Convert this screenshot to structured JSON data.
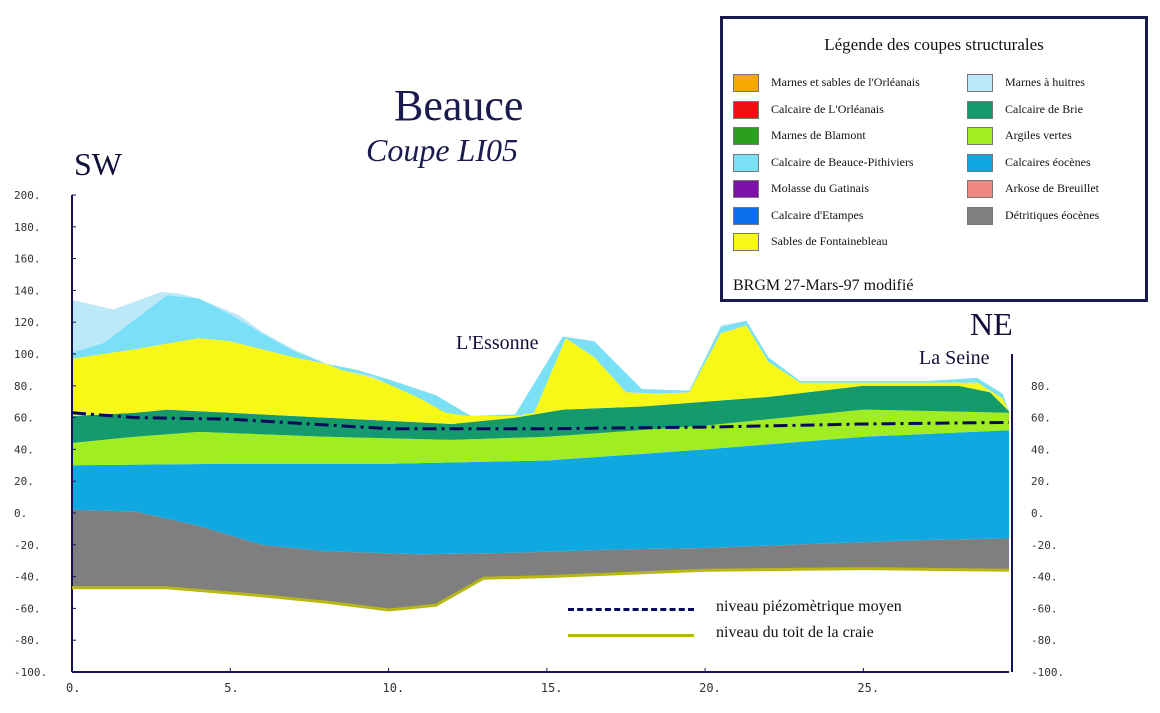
{
  "title": "Beauce",
  "subtitle": "Coupe LI05",
  "labels": {
    "sw": "SW",
    "ne": "NE",
    "essonne": "L'Essonne",
    "seine": "La Seine"
  },
  "chart_data": {
    "type": "area",
    "xlabel": "",
    "ylabel": "",
    "x_range": [
      0,
      29.6
    ],
    "y_range": [
      -100,
      200
    ],
    "x_ticks": [
      "0.",
      "5.",
      "10.",
      "15.",
      "20.",
      "25."
    ],
    "y_ticks_left": [
      "200.",
      "180.",
      "160.",
      "140.",
      "120.",
      "100.",
      "80.",
      "60.",
      "40.",
      "20.",
      "0.",
      "-20.",
      "-40.",
      "-60.",
      "-80.",
      "-100."
    ],
    "y_ticks_right": [
      "80.",
      "60.",
      "40.",
      "20.",
      "0.",
      "-20.",
      "-40.",
      "-60.",
      "-80.",
      "-100."
    ],
    "layers_bottom_to_top": [
      {
        "name": "Détritiques éocènes",
        "color": "#7f7f7f"
      },
      {
        "name": "Calcaires éocènes",
        "color": "#10a8e0"
      },
      {
        "name": "Argiles vertes",
        "color": "#a0ee22"
      },
      {
        "name": "Calcaire de Brie",
        "color": "#149a6c"
      },
      {
        "name": "Sables de Fontainebleau",
        "color": "#f8f818"
      },
      {
        "name": "Calcaire de Beauce-Pithiviers",
        "color": "#7ae0f8"
      },
      {
        "name": "Marnes à huitres",
        "color": "#bde8f8"
      }
    ],
    "piezometric_level": {
      "x": [
        0,
        2,
        5,
        10,
        15,
        20,
        25,
        29.6
      ],
      "y": [
        63,
        60,
        59,
        53,
        53,
        54,
        56,
        57
      ]
    },
    "chalk_top": {
      "x": [
        0,
        3,
        6,
        8,
        10,
        11.5,
        13,
        15,
        20,
        25,
        29.6
      ],
      "y": [
        -47,
        -47,
        -52,
        -56,
        -61,
        -58,
        -41,
        -40,
        -36,
        -35,
        -36
      ]
    }
  },
  "legend": {
    "title": "Légende des coupes structurales",
    "source": "BRGM 27-Mars-97 modifié",
    "left": [
      {
        "label": "Marnes et sables de l'Orléanais",
        "color": "#f5a800"
      },
      {
        "label": "Calcaire de L'Orléanais",
        "color": "#ee1010"
      },
      {
        "label": "Marnes de Blamont",
        "color": "#2ba01e"
      },
      {
        "label": "Calcaire de Beauce-Pithiviers",
        "color": "#7ae0f8"
      },
      {
        "label": "Molasse du Gatinais",
        "color": "#7d10a8"
      },
      {
        "label": "Calcaire d'Etampes",
        "color": "#0c70ee"
      },
      {
        "label": "Sables de Fontainebleau",
        "color": "#f8f818"
      }
    ],
    "right": [
      {
        "label": "Marnes à huitres",
        "color": "#bde8f8"
      },
      {
        "label": "Calcaire de Brie",
        "color": "#149a6c"
      },
      {
        "label": "Argiles vertes",
        "color": "#a0ee22"
      },
      {
        "label": "Calcaires éocènes",
        "color": "#10a8e0"
      },
      {
        "label": "Arkose de Breuillet",
        "color": "#f08884"
      },
      {
        "label": "Détritiques éocènes",
        "color": "#7f7f7f"
      }
    ]
  },
  "key": {
    "piezo": {
      "label": "niveau piézomètrique moyen",
      "color": "#0a0a5a"
    },
    "chalk": {
      "label": "niveau du toit de la craie",
      "color": "#b8b814"
    }
  }
}
